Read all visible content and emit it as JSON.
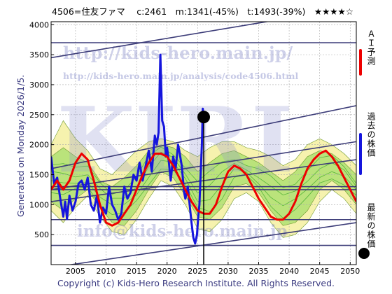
{
  "header": {
    "text": "4506=住友ファマ　 c:2461　m:1341(-45%)　t:1493(-39%)　★★★★☆"
  },
  "generated_text": "Generated on Monday 2026/1/5.",
  "copyright": "Copyright (c) Kids-Hero Research Institute. All Rights Reserved.",
  "watermarks": {
    "url": "http://kids-hero.main.jp/",
    "analysis_url": "http://kids-hero.main.jp/analysis/code4506.html",
    "email": "info@kids-hero.main.jp",
    "logo": "KIRI"
  },
  "legend": {
    "ai_forecast": "ＡＩ予測",
    "past_price": "過去の株価",
    "latest_price": "最新の株価"
  },
  "colors": {
    "ai_forecast": "#ee0000",
    "past_price": "#1515dd",
    "latest_price": "#000000",
    "band_yellow": "#f4f0a0",
    "band_green": "#a6dd6a",
    "trend_lines": "#3c3c78",
    "text_blue": "#3a3a80"
  },
  "chart_data": {
    "type": "line",
    "xlim": [
      2001,
      2051
    ],
    "ylim": [
      0,
      4050
    ],
    "x_ticks": [
      2005,
      2010,
      2015,
      2020,
      2025,
      2030,
      2035,
      2040,
      2045,
      2050
    ],
    "y_ticks": [
      500,
      1000,
      1500,
      2000,
      2500,
      3000,
      3500,
      4000
    ],
    "grid": true,
    "latest_marker": {
      "x": 2026.0,
      "y": 2461
    },
    "vertical_marker_x": 2026.0,
    "series": [
      {
        "name": "過去の株価",
        "x": [
          2001.0,
          2001.5,
          2002.0,
          2002.5,
          2003.0,
          2003.3,
          2003.6,
          2004.0,
          2004.5,
          2005.0,
          2005.5,
          2006.0,
          2006.5,
          2007.0,
          2007.5,
          2008.0,
          2008.5,
          2009.0,
          2009.5,
          2010.0,
          2010.5,
          2011.0,
          2011.5,
          2012.0,
          2012.5,
          2013.0,
          2013.5,
          2014.0,
          2014.5,
          2015.0,
          2015.5,
          2016.0,
          2016.5,
          2017.0,
          2017.5,
          2018.0,
          2018.3,
          2018.6,
          2018.9,
          2019.2,
          2019.5,
          2019.8,
          2020.0,
          2020.3,
          2020.6,
          2021.0,
          2021.4,
          2021.8,
          2022.0,
          2022.4,
          2022.8,
          2023.0,
          2023.4,
          2023.8,
          2024.0,
          2024.3,
          2024.6,
          2024.9,
          2025.1,
          2025.3,
          2025.5,
          2025.7,
          2025.85,
          2026.0
        ],
        "values": [
          1800,
          1350,
          1450,
          1100,
          800,
          1050,
          760,
          1150,
          900,
          1050,
          1350,
          1400,
          1250,
          1450,
          1000,
          900,
          1150,
          700,
          950,
          850,
          1300,
          1000,
          900,
          750,
          850,
          1300,
          1100,
          1200,
          1500,
          1400,
          1700,
          1400,
          1650,
          1900,
          1550,
          2150,
          2000,
          2200,
          3500,
          2400,
          2300,
          1800,
          1950,
          1700,
          1400,
          1800,
          1600,
          2000,
          1900,
          1650,
          1200,
          1100,
          1300,
          900,
          700,
          450,
          350,
          500,
          800,
          1000,
          1500,
          2000,
          2600,
          2461
        ]
      },
      {
        "name": "ＡＩ予測",
        "x": [
          2001.0,
          2002.0,
          2003.0,
          2004.0,
          2005.0,
          2006.0,
          2007.0,
          2008.0,
          2009.0,
          2010.0,
          2011.0,
          2012.0,
          2013.0,
          2014.0,
          2015.0,
          2016.0,
          2017.0,
          2018.0,
          2019.0,
          2020.0,
          2021.0,
          2022.0,
          2023.0,
          2024.0,
          2025.0,
          2026.0,
          2027.0,
          2028.0,
          2029.0,
          2030.0,
          2031.0,
          2032.0,
          2033.0,
          2034.0,
          2035.0,
          2036.0,
          2037.0,
          2038.0,
          2039.0,
          2040.0,
          2041.0,
          2042.0,
          2043.0,
          2044.0,
          2045.0,
          2046.0,
          2047.0,
          2048.0,
          2049.0,
          2050.0,
          2051.0
        ],
        "values": [
          1250,
          1400,
          1250,
          1400,
          1700,
          1850,
          1750,
          1400,
          1000,
          700,
          650,
          700,
          850,
          1000,
          1250,
          1500,
          1700,
          1850,
          1850,
          1800,
          1650,
          1450,
          1250,
          1050,
          900,
          850,
          850,
          1000,
          1300,
          1550,
          1650,
          1600,
          1500,
          1300,
          1100,
          950,
          800,
          750,
          750,
          850,
          1050,
          1350,
          1600,
          1750,
          1850,
          1900,
          1800,
          1650,
          1450,
          1250,
          1050
        ]
      }
    ],
    "bands": [
      {
        "name": "band-yellow",
        "x": [
          2001,
          2003,
          2005,
          2007,
          2009,
          2011,
          2013,
          2015,
          2017,
          2019,
          2021,
          2023,
          2025,
          2027,
          2029,
          2031,
          2033,
          2035,
          2037,
          2039,
          2041,
          2043,
          2045,
          2047,
          2049,
          2051
        ],
        "upper": [
          2000,
          2400,
          2100,
          1900,
          1600,
          1500,
          1700,
          1900,
          2050,
          2100,
          2050,
          1900,
          1800,
          1950,
          2050,
          2050,
          1950,
          1900,
          1800,
          1650,
          1750,
          2000,
          2100,
          2000,
          1850,
          1650
        ],
        "lower": [
          900,
          700,
          950,
          1150,
          800,
          550,
          500,
          750,
          1100,
          1400,
          1300,
          1000,
          600,
          550,
          750,
          1100,
          1200,
          1050,
          700,
          450,
          500,
          700,
          1050,
          1250,
          1100,
          850
        ]
      },
      {
        "name": "band-green",
        "x": [
          2001,
          2003,
          2005,
          2007,
          2009,
          2011,
          2013,
          2015,
          2017,
          2019,
          2021,
          2023,
          2025,
          2027,
          2029,
          2031,
          2033,
          2035,
          2037,
          2039,
          2041,
          2043,
          2045,
          2047,
          2049,
          2051
        ],
        "upper": [
          1800,
          1950,
          1800,
          1700,
          1400,
          1300,
          1450,
          1650,
          1900,
          2000,
          1950,
          1800,
          1550,
          1700,
          1850,
          1900,
          1800,
          1700,
          1550,
          1400,
          1550,
          1800,
          1900,
          1850,
          1700,
          1500
        ],
        "lower": [
          1050,
          900,
          1100,
          1250,
          950,
          700,
          650,
          900,
          1250,
          1550,
          1450,
          1150,
          800,
          750,
          950,
          1300,
          1350,
          1200,
          900,
          650,
          700,
          900,
          1250,
          1400,
          1250,
          1000
        ]
      }
    ],
    "trend_lines": [
      {
        "x": [
          2001,
          2051
        ],
        "y": [
          3450,
          4300
        ]
      },
      {
        "x": [
          2001,
          2051
        ],
        "y": [
          3700,
          3700
        ]
      },
      {
        "x": [
          2001,
          2051
        ],
        "y": [
          1600,
          2650
        ]
      },
      {
        "x": [
          2001,
          2051
        ],
        "y": [
          1250,
          2050
        ]
      },
      {
        "x": [
          2001,
          2051
        ],
        "y": [
          1050,
          1750
        ]
      },
      {
        "x": [
          2001,
          2051
        ],
        "y": [
          1300,
          1300
        ]
      },
      {
        "x": [
          2001,
          2051
        ],
        "y": [
          1250,
          1250
        ]
      },
      {
        "x": [
          2001,
          2051
        ],
        "y": [
          750,
          750
        ]
      },
      {
        "x": [
          2001,
          2051
        ],
        "y": [
          320,
          320
        ]
      },
      {
        "x": [
          2001,
          2051
        ],
        "y": [
          -50,
          700
        ]
      }
    ]
  }
}
